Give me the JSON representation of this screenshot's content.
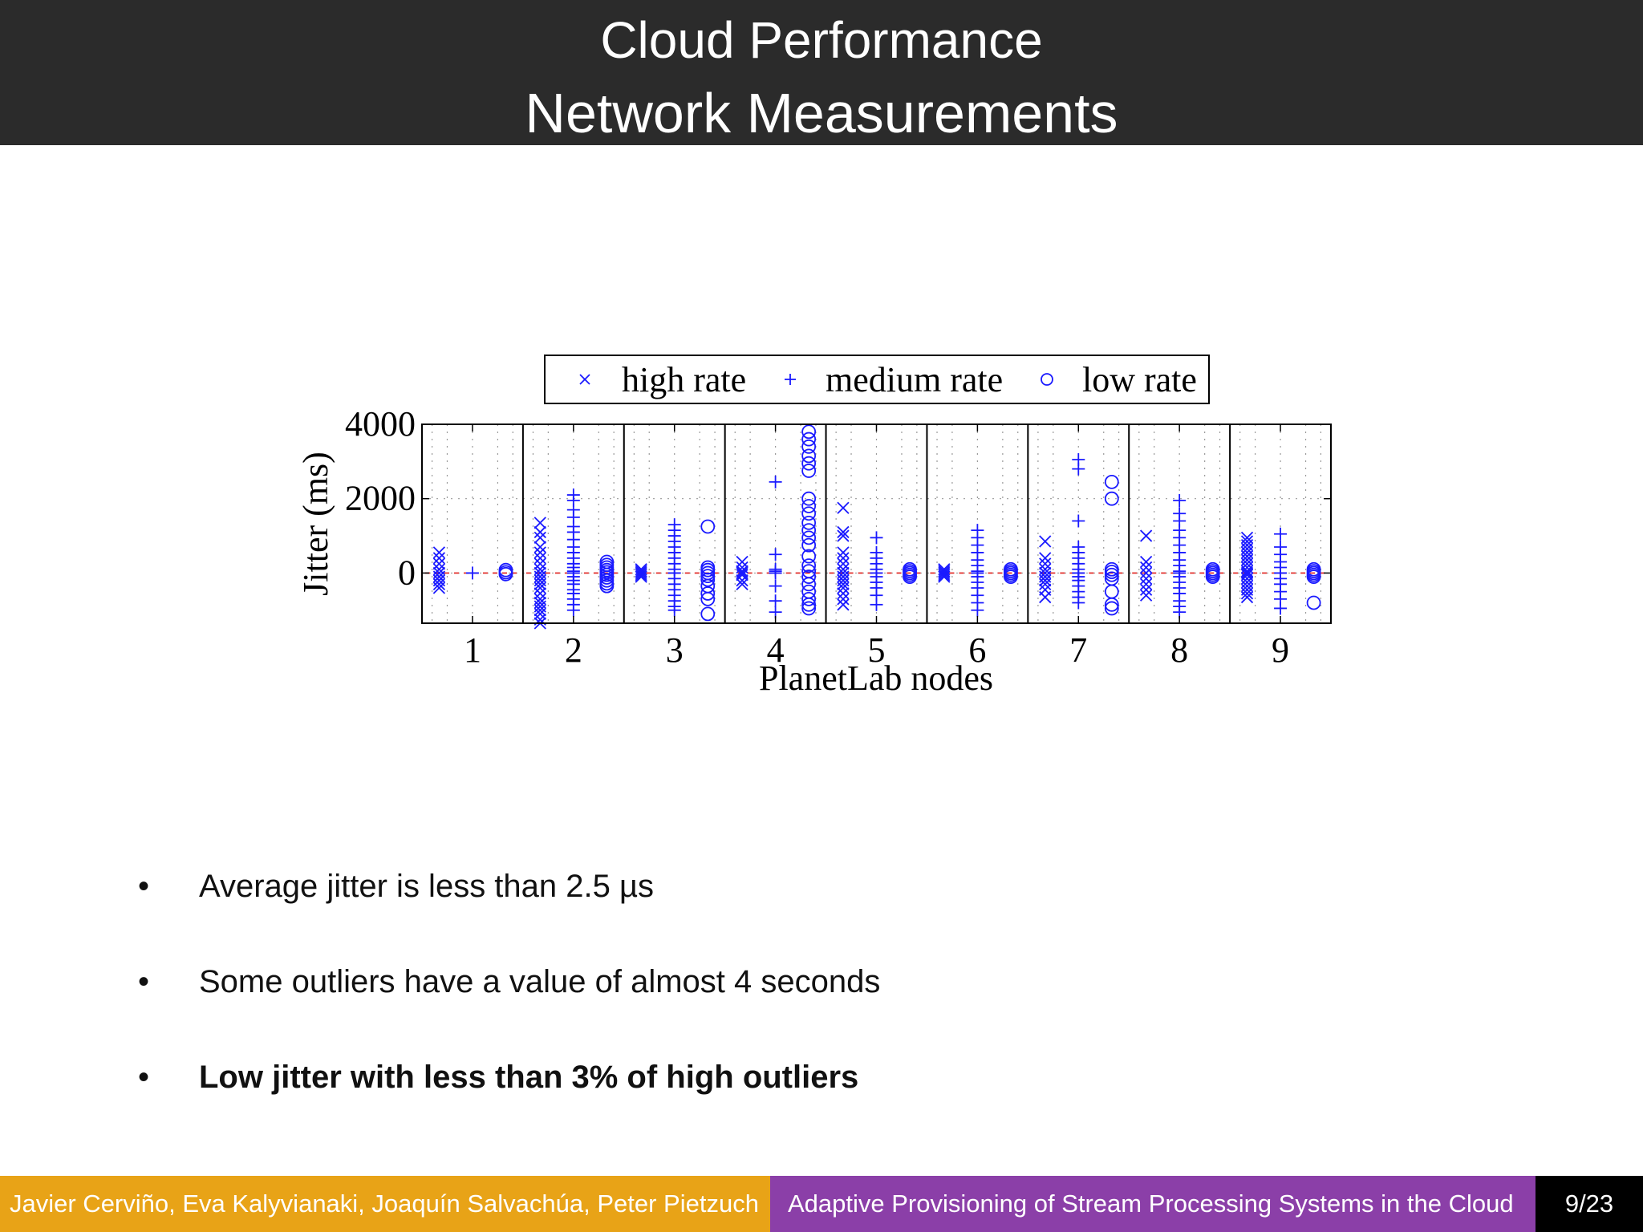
{
  "slide": {
    "title_line1": "Cloud Performance",
    "title_line2": "Network Measurements"
  },
  "bullets": [
    {
      "text": "Average jitter is less than 2.5 µs",
      "bold": false
    },
    {
      "text": "Some outliers have a value of almost 4 seconds",
      "bold": false
    },
    {
      "text": "Low jitter with less than 3% of high outliers",
      "bold": true
    }
  ],
  "bullet_glyph": "•",
  "footer": {
    "authors": "Javier Cerviño, Eva Kalyvianaki, Joaquín Salvachúa, Peter Pietzuch",
    "talk_title": "Adaptive Provisioning of Stream Processing Systems in the Cloud",
    "page": "9/23"
  },
  "colors": {
    "header_bg": "#2b2b2b",
    "footer_authors_bg": "#e8a317",
    "footer_title_bg": "#8b3fa8",
    "footer_page_bg": "#000000",
    "marker": "#1a1aff",
    "mean_line": "#e0201c"
  },
  "chart_data": {
    "type": "scatter",
    "title": "",
    "xlabel": "PlanetLab nodes",
    "ylabel": "Jitter (ms)",
    "categories": [
      "1",
      "2",
      "3",
      "4",
      "5",
      "6",
      "7",
      "8",
      "9"
    ],
    "ylim": [
      -1350,
      4000
    ],
    "yticks": [
      0,
      2000,
      4000
    ],
    "grid": true,
    "legend_position": "top",
    "legend": [
      {
        "name": "high rate",
        "marker": "x"
      },
      {
        "name": "medium rate",
        "marker": "+"
      },
      {
        "name": "low rate",
        "marker": "o"
      }
    ],
    "series": [
      {
        "name": "high rate",
        "marker": "x",
        "values": [
          [
            550,
            400,
            250,
            100,
            0,
            -100,
            -200,
            -300,
            -400
          ],
          [
            1350,
            1100,
            950,
            700,
            550,
            400,
            250,
            100,
            0,
            -100,
            -200,
            -300,
            -400,
            -550,
            -700,
            -800,
            -900,
            -1000,
            -1100,
            -1250,
            -1350
          ],
          [
            100,
            50,
            0,
            -50,
            -100
          ],
          [
            300,
            150,
            50,
            0,
            -50,
            -200,
            -300
          ],
          [
            1750,
            1100,
            1000,
            550,
            400,
            250,
            100,
            0,
            -100,
            -200,
            -300,
            -400,
            -550,
            -700,
            -850
          ],
          [
            100,
            50,
            0,
            -50,
            -100
          ],
          [
            850,
            400,
            250,
            100,
            0,
            -100,
            -200,
            -300,
            -450,
            -650
          ],
          [
            1000,
            300,
            150,
            0,
            -150,
            -300,
            -450,
            -600
          ],
          [
            950,
            850,
            750,
            650,
            550,
            450,
            350,
            250,
            150,
            50,
            0,
            -50,
            -150,
            -250,
            -350,
            -450,
            -550,
            -650
          ]
        ]
      },
      {
        "name": "medium rate",
        "marker": "+",
        "values": [
          [
            0
          ],
          [
            2100,
            1950,
            1700,
            1500,
            1250,
            1100,
            900,
            700,
            550,
            400,
            250,
            150,
            50,
            0,
            -100,
            -200,
            -300,
            -450,
            -550,
            -700,
            -850,
            -1000
          ],
          [
            1300,
            1150,
            1000,
            850,
            700,
            550,
            400,
            250,
            100,
            0,
            -150,
            -300,
            -450,
            -600,
            -750,
            -900,
            -1000
          ],
          [
            2450,
            500,
            100,
            50,
            0,
            -350,
            -750,
            -1050
          ],
          [
            950,
            550,
            400,
            250,
            100,
            0,
            -100,
            -250,
            -400,
            -600,
            -850
          ],
          [
            1150,
            950,
            750,
            550,
            350,
            200,
            50,
            0,
            -100,
            -250,
            -400,
            -600,
            -800,
            -1000
          ],
          [
            3050,
            2800,
            1400,
            700,
            550,
            400,
            250,
            100,
            0,
            -100,
            -200,
            -350,
            -500,
            -650,
            -800
          ],
          [
            1950,
            1600,
            1400,
            1150,
            950,
            750,
            550,
            350,
            200,
            50,
            0,
            -100,
            -250,
            -400,
            -550,
            -750,
            -900,
            -1050
          ],
          [
            1050,
            700,
            500,
            300,
            150,
            0,
            -150,
            -300,
            -500,
            -700,
            -950
          ]
        ]
      },
      {
        "name": "low rate",
        "marker": "o",
        "values": [
          [
            80,
            20,
            -30
          ],
          [
            300,
            220,
            150,
            80,
            20,
            -50,
            -120,
            -200,
            -280,
            -350
          ],
          [
            1250,
            150,
            80,
            0,
            -80,
            -180,
            -350,
            -550,
            -700,
            -1100
          ],
          [
            3800,
            3600,
            3400,
            3150,
            2950,
            2750,
            2000,
            1800,
            1600,
            1350,
            1150,
            950,
            750,
            450,
            200,
            50,
            -100,
            -300,
            -500,
            -700,
            -850,
            -950
          ],
          [
            100,
            50,
            0,
            -50,
            -100
          ],
          [
            100,
            50,
            0,
            -50,
            -100
          ],
          [
            2450,
            2000,
            100,
            30,
            -50,
            -150,
            -500,
            -850,
            -950
          ],
          [
            100,
            50,
            0,
            -50,
            -100
          ],
          [
            100,
            50,
            0,
            -50,
            -100,
            -800
          ]
        ]
      }
    ],
    "means": [
      0,
      0,
      0,
      0,
      0,
      0,
      0,
      0,
      0
    ]
  }
}
